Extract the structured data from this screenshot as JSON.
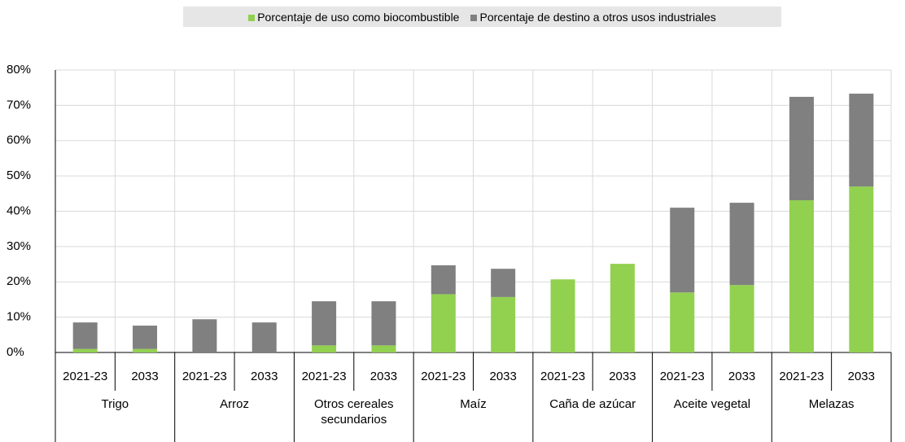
{
  "chart_data": {
    "type": "stacked_bar",
    "categories": [
      "2021-23",
      "2033",
      "2021-23",
      "2033",
      "2021-23",
      "2033",
      "2021-23",
      "2033",
      "2021-23",
      "2033",
      "2021-23",
      "2033",
      "2021-23",
      "2033"
    ],
    "groups": [
      "Trigo",
      "Arroz",
      "Otros cereales secundarios",
      "Maíz",
      "Caña de azúcar",
      "Aceite vegetal",
      "Melazas"
    ],
    "series": [
      {
        "name": "Porcentaje de uso como biocombustible",
        "color": "#92d050",
        "values": [
          1,
          1,
          0,
          0,
          2,
          2,
          16.5,
          15.7,
          20.7,
          25.1,
          17,
          19.1,
          43.1,
          47
        ]
      },
      {
        "name": "Porcentaje de destino a otros usos industriales",
        "color": "#808080",
        "values": [
          7.5,
          6.6,
          9.4,
          8.5,
          12.5,
          12.5,
          8.2,
          8,
          0,
          0,
          24,
          23.3,
          29.3,
          26.3
        ]
      }
    ],
    "ylim": [
      0,
      80
    ],
    "yticks": [
      {
        "value": 0,
        "label": "0%"
      },
      {
        "value": 10,
        "label": "10%"
      },
      {
        "value": 20,
        "label": "20%"
      },
      {
        "value": 30,
        "label": "30%"
      },
      {
        "value": 40,
        "label": "40%"
      },
      {
        "value": 50,
        "label": "50%"
      },
      {
        "value": 60,
        "label": "60%"
      },
      {
        "value": 70,
        "label": "70%"
      },
      {
        "value": 80,
        "label": "80%"
      }
    ],
    "grid": true
  }
}
